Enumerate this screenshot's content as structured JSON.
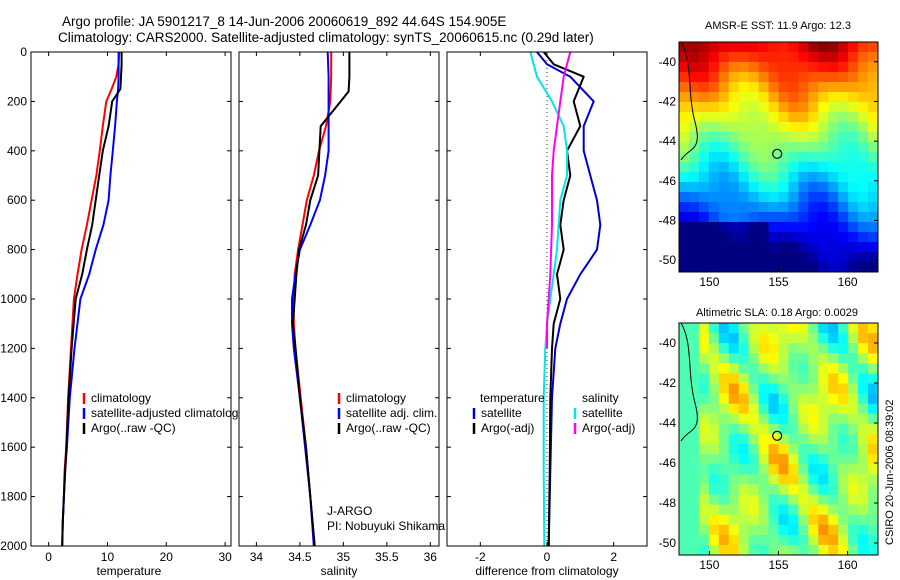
{
  "title": {
    "line1": "Argo profile: JA 5901217_8 14-Jun-2006 20060619_892 44.64S 154.905E",
    "line2": "Climatology: CARS2000. Satellite-adjusted climatology: synTS_20060615.nc (0.29d later)"
  },
  "colors": {
    "climatology": "#ff0000",
    "satellite": "#0000ff",
    "argo": "#000000",
    "temp_sat": "#0000cc",
    "sal_sat": "#00e5e5",
    "sal_argo": "#ff00ff"
  },
  "chart_data": [
    {
      "type": "line",
      "panel": "temperature",
      "xlabel": "temperature",
      "ylabel": "",
      "xlim": [
        -3,
        31
      ],
      "ylim": [
        2000,
        0
      ],
      "y_reversed": true,
      "xticks": [
        "0",
        "10",
        "20",
        "30"
      ],
      "yticks": [
        "0",
        "200",
        "400",
        "600",
        "800",
        "1000",
        "1200",
        "1400",
        "1600",
        "1800",
        "2000"
      ],
      "legend": [
        "climatology",
        "satellite-adjusted climatolog",
        "Argo(..raw -QC)"
      ],
      "legend_position": "lower-right",
      "series": [
        {
          "name": "climatology",
          "color_key": "climatology",
          "x": [
            12.0,
            11.9,
            11.5,
            10.7,
            9.8,
            9.2,
            8.7,
            8.1,
            7.3,
            6.5,
            5.6,
            4.9,
            4.3,
            3.8,
            3.3,
            3.0,
            2.7,
            2.6,
            2.4,
            2.3
          ],
          "y": [
            0,
            50,
            100,
            150,
            200,
            300,
            400,
            500,
            600,
            700,
            800,
            900,
            1000,
            1200,
            1400,
            1600,
            1700,
            1800,
            1900,
            2000
          ]
        },
        {
          "name": "satellite-adjusted climatolog",
          "color_key": "satellite",
          "x": [
            11.9,
            11.9,
            11.9,
            11.8,
            11.6,
            11.3,
            10.9,
            10.5,
            10.2,
            9.3,
            8.0,
            6.9,
            5.4,
            4.4,
            3.6,
            3.1,
            2.8,
            2.6,
            2.4,
            2.3
          ],
          "y": [
            0,
            50,
            100,
            150,
            200,
            300,
            400,
            500,
            600,
            700,
            800,
            900,
            1000,
            1200,
            1400,
            1600,
            1700,
            1800,
            1900,
            2000
          ]
        },
        {
          "name": "Argo(..raw -QC)",
          "color_key": "argo",
          "x": [
            12.4,
            12.4,
            12.3,
            12.2,
            10.8,
            10.2,
            9.2,
            8.6,
            8.0,
            7.4,
            6.5,
            5.7,
            4.6,
            3.9,
            3.4,
            3.0,
            2.8,
            2.6,
            2.4,
            2.3
          ],
          "y": [
            0,
            50,
            100,
            150,
            200,
            300,
            400,
            500,
            600,
            700,
            800,
            900,
            1000,
            1200,
            1400,
            1600,
            1700,
            1800,
            1900,
            2000
          ]
        }
      ]
    },
    {
      "type": "line",
      "panel": "salinity",
      "xlabel": "salinity",
      "ylabel": "",
      "xlim": [
        33.8,
        36.1
      ],
      "ylim": [
        2000,
        0
      ],
      "y_reversed": true,
      "xticks": [
        "34",
        "34.5",
        "35",
        "35.5",
        "36"
      ],
      "legend": [
        "climatology",
        "satellite adj. clim.",
        "Argo(..raw -QC)"
      ],
      "legend_position": "lower-right",
      "annotation": [
        "J-ARGO",
        "PI: Nobuyuki Shikama"
      ],
      "series": [
        {
          "name": "climatology",
          "color_key": "climatology",
          "x": [
            34.86,
            34.86,
            34.85,
            34.8,
            34.72,
            34.66,
            34.58,
            34.53,
            34.48,
            34.44,
            34.43,
            34.43,
            34.45,
            34.51,
            34.57,
            34.62,
            34.67
          ],
          "y": [
            0,
            100,
            200,
            300,
            400,
            500,
            600,
            700,
            800,
            900,
            1000,
            1100,
            1200,
            1400,
            1600,
            1800,
            2000
          ]
        },
        {
          "name": "satellite adj. clim.",
          "color_key": "satellite",
          "x": [
            34.82,
            34.83,
            34.83,
            34.83,
            34.83,
            34.79,
            34.73,
            34.62,
            34.5,
            34.45,
            34.41,
            34.41,
            34.43,
            34.5,
            34.56,
            34.62,
            34.66
          ],
          "y": [
            0,
            100,
            200,
            300,
            400,
            500,
            600,
            700,
            800,
            900,
            1000,
            1100,
            1200,
            1400,
            1600,
            1800,
            2000
          ]
        },
        {
          "name": "Argo(..raw -QC)",
          "color_key": "argo",
          "x": [
            35.07,
            35.07,
            35.06,
            34.97,
            34.74,
            34.71,
            34.62,
            34.57,
            34.49,
            34.46,
            34.44,
            34.42,
            34.45,
            34.5,
            34.57,
            34.62,
            34.67
          ],
          "y": [
            0,
            100,
            160,
            200,
            300,
            500,
            600,
            700,
            800,
            900,
            1000,
            1100,
            1200,
            1400,
            1600,
            1800,
            2000
          ]
        }
      ]
    },
    {
      "type": "line",
      "panel": "difference",
      "xlabel": "difference from climatology",
      "ylabel": "",
      "xlim": [
        -3.0,
        3.0
      ],
      "ylim": [
        2000,
        0
      ],
      "y_reversed": true,
      "xticks": [
        "-2",
        "0",
        "2"
      ],
      "legend_left_title": "temperature",
      "legend_right_title": "salinity",
      "legend": [
        "satellite",
        "Argo(-adj)",
        "satellite",
        "Argo(-adj)"
      ],
      "legend_position": "lower-center",
      "series": [
        {
          "name": "satellite",
          "group": "temperature",
          "color_key": "temp_sat",
          "x": [
            -0.3,
            0.0,
            0.7,
            1.4,
            1.1,
            1.1,
            1.3,
            1.5,
            1.6,
            1.5,
            1.0,
            0.6,
            0.4,
            0.25,
            0.15,
            0.1,
            0.05
          ],
          "y": [
            0,
            50,
            100,
            200,
            300,
            400,
            500,
            600,
            700,
            800,
            900,
            1000,
            1100,
            1200,
            1400,
            1700,
            2000
          ]
        },
        {
          "name": "Argo(-adj)",
          "group": "temperature",
          "color_key": "argo",
          "x": [
            -0.1,
            0.2,
            1.1,
            0.8,
            1.0,
            0.6,
            0.7,
            0.5,
            0.4,
            0.5,
            0.3,
            0.4,
            0.2,
            0.15,
            0.1,
            0.08,
            0.05
          ],
          "y": [
            0,
            50,
            100,
            200,
            300,
            400,
            500,
            600,
            700,
            800,
            900,
            1000,
            1100,
            1200,
            1400,
            1700,
            2000
          ]
        },
        {
          "name": "satellite",
          "group": "salinity",
          "color_key": "sal_sat",
          "x": [
            -0.5,
            -0.4,
            -0.3,
            0.15,
            0.5,
            0.6,
            0.6,
            0.4,
            0.3,
            0.2,
            0.1,
            0.0,
            -0.05,
            -0.1,
            -0.1,
            -0.08
          ],
          "y": [
            0,
            50,
            100,
            200,
            300,
            400,
            500,
            600,
            800,
            900,
            1000,
            1100,
            1200,
            1400,
            1700,
            2000
          ]
        },
        {
          "name": "Argo(-adj)",
          "group": "salinity",
          "color_key": "sal_argo",
          "x": [
            0.7,
            0.6,
            0.5,
            0.4,
            0.3,
            0.2,
            0.15,
            0.15,
            0.1,
            0.05,
            0.0,
            0.0
          ],
          "y": [
            0,
            50,
            100,
            200,
            300,
            400,
            500,
            700,
            900,
            1000,
            1100,
            1200
          ]
        }
      ]
    },
    {
      "type": "heatmap",
      "panel": "sst-map",
      "title": "AMSR-E SST: 11.9 Argo: 12.3",
      "xlim": [
        147.8,
        162.2
      ],
      "ylim": [
        -50.6,
        -39.0
      ],
      "xticks": [
        "150",
        "155",
        "160"
      ],
      "yticks": [
        "-40",
        "-42",
        "-44",
        "-46",
        "-48",
        "-50"
      ],
      "marker": {
        "lon": 154.905,
        "lat": -44.64
      }
    },
    {
      "type": "heatmap",
      "panel": "sla-map",
      "title": "Altimetric SLA: 0.18 Argo: 0.0029",
      "xlim": [
        147.8,
        162.2
      ],
      "ylim": [
        -50.6,
        -39.0
      ],
      "xticks": [
        "150",
        "155",
        "160"
      ],
      "yticks": [
        "-40",
        "-42",
        "-44",
        "-46",
        "-48",
        "-50"
      ],
      "marker": {
        "lon": 154.905,
        "lat": -44.64
      }
    }
  ],
  "footer": "CSIRO 20-Jun-2006 08:39:02"
}
